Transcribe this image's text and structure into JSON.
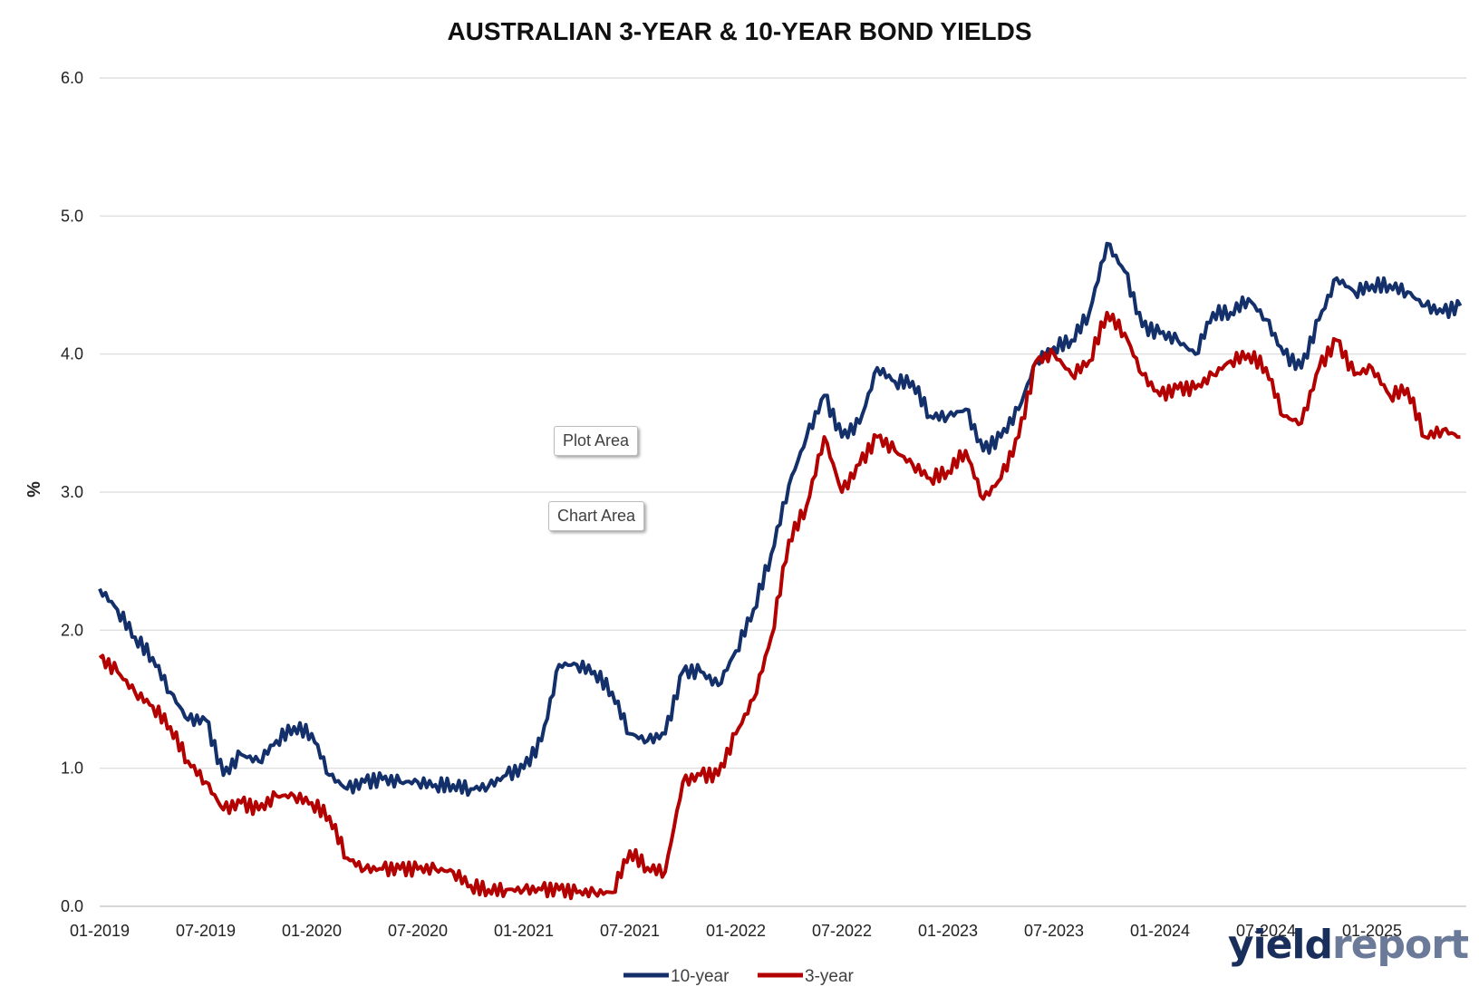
{
  "chart_data": {
    "type": "line",
    "title": "AUSTRALIAN 3-YEAR & 10-YEAR BOND YIELDS",
    "ylabel": "%",
    "xlabel": "",
    "ylim": [
      0,
      6
    ],
    "yticks": [
      "0.0",
      "1.0",
      "2.0",
      "3.0",
      "4.0",
      "5.0",
      "6.0"
    ],
    "xticks": [
      "01-2019",
      "07-2019",
      "01-2020",
      "07-2020",
      "01-2021",
      "07-2021",
      "01-2022",
      "07-2022",
      "01-2023",
      "07-2023",
      "01-2024",
      "07-2024",
      "01-2025"
    ],
    "grid": "horizontal",
    "legend_position": "bottom",
    "x": [
      "2019-01",
      "2019-02",
      "2019-03",
      "2019-04",
      "2019-05",
      "2019-06",
      "2019-07",
      "2019-08",
      "2019-09",
      "2019-10",
      "2019-11",
      "2019-12",
      "2020-01",
      "2020-02",
      "2020-03",
      "2020-04",
      "2020-05",
      "2020-06",
      "2020-07",
      "2020-08",
      "2020-09",
      "2020-10",
      "2020-11",
      "2020-12",
      "2021-01",
      "2021-02",
      "2021-03",
      "2021-04",
      "2021-05",
      "2021-06",
      "2021-07",
      "2021-08",
      "2021-09",
      "2021-10",
      "2021-11",
      "2021-12",
      "2022-01",
      "2022-02",
      "2022-03",
      "2022-04",
      "2022-05",
      "2022-06",
      "2022-07",
      "2022-08",
      "2022-09",
      "2022-10",
      "2022-11",
      "2022-12",
      "2023-01",
      "2023-02",
      "2023-03",
      "2023-04",
      "2023-05",
      "2023-06",
      "2023-07",
      "2023-08",
      "2023-09",
      "2023-10",
      "2023-11",
      "2023-12",
      "2024-01",
      "2024-02",
      "2024-03",
      "2024-04",
      "2024-05",
      "2024-06",
      "2024-07",
      "2024-08",
      "2024-09",
      "2024-10",
      "2024-11",
      "2024-12",
      "2025-01",
      "2025-02",
      "2025-03",
      "2025-04",
      "2025-05",
      "2025-06"
    ],
    "series": [
      {
        "name": "10-year",
        "color": "#14306b",
        "values": [
          2.3,
          2.15,
          1.95,
          1.8,
          1.55,
          1.35,
          1.35,
          0.95,
          1.1,
          1.05,
          1.2,
          1.3,
          1.25,
          0.95,
          0.85,
          0.9,
          0.92,
          0.9,
          0.9,
          0.88,
          0.88,
          0.85,
          0.87,
          0.95,
          1.0,
          1.2,
          1.75,
          1.75,
          1.7,
          1.55,
          1.25,
          1.2,
          1.25,
          1.7,
          1.7,
          1.6,
          1.85,
          2.15,
          2.55,
          3.05,
          3.4,
          3.7,
          3.4,
          3.5,
          3.9,
          3.8,
          3.8,
          3.55,
          3.55,
          3.6,
          3.3,
          3.4,
          3.6,
          3.95,
          4.05,
          4.1,
          4.3,
          4.8,
          4.6,
          4.2,
          4.15,
          4.1,
          4.0,
          4.3,
          4.3,
          4.4,
          4.25,
          4.0,
          3.9,
          4.25,
          4.55,
          4.45,
          4.5,
          4.5,
          4.45,
          4.35,
          4.3,
          4.35
        ]
      },
      {
        "name": "3-year",
        "color": "#b30000",
        "values": [
          1.8,
          1.7,
          1.55,
          1.45,
          1.3,
          1.05,
          0.9,
          0.7,
          0.75,
          0.7,
          0.8,
          0.8,
          0.75,
          0.65,
          0.35,
          0.27,
          0.27,
          0.27,
          0.27,
          0.27,
          0.25,
          0.15,
          0.12,
          0.12,
          0.12,
          0.12,
          0.12,
          0.1,
          0.1,
          0.1,
          0.4,
          0.28,
          0.25,
          0.9,
          0.95,
          0.95,
          1.25,
          1.5,
          1.95,
          2.65,
          2.9,
          3.4,
          3.0,
          3.2,
          3.4,
          3.3,
          3.2,
          3.1,
          3.15,
          3.3,
          2.95,
          3.1,
          3.4,
          3.95,
          4.0,
          3.85,
          3.95,
          4.3,
          4.15,
          3.85,
          3.7,
          3.75,
          3.75,
          3.85,
          3.95,
          4.0,
          3.9,
          3.55,
          3.5,
          3.9,
          4.1,
          3.85,
          3.9,
          3.7,
          3.75,
          3.4,
          3.45,
          3.4
        ]
      }
    ]
  },
  "tooltips": {
    "plot_area": "Plot Area",
    "chart_area": "Chart Area"
  },
  "logo": {
    "part1": "yield",
    "part2": "report"
  }
}
